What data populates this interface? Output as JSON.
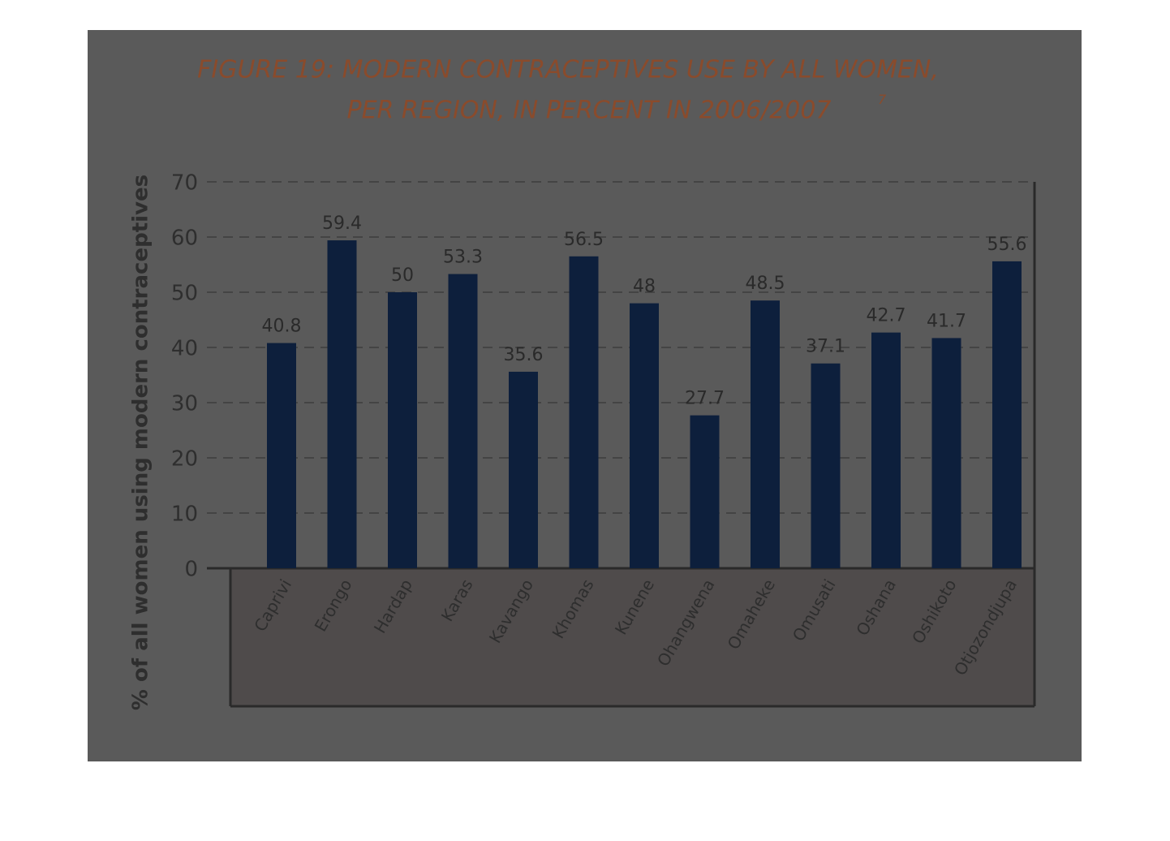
{
  "chart_data": {
    "type": "bar",
    "title_lines": [
      "FIGURE 19: MODERN CONTRACEPTIVES USE BY ALL WOMEN,",
      "PER REGION, IN PERCENT IN 2006/2007"
    ],
    "title_note": "7",
    "y_label": "% of all women using modern contraceptives",
    "categories": [
      "Caprivi",
      "Erongo",
      "Hardap",
      "Karas",
      "Kavango",
      "Khomas",
      "Kunene",
      "Ohangwena",
      "Omaheke",
      "Omusati",
      "Oshana",
      "Oshikoto",
      "Otjozondjupa"
    ],
    "values": [
      40.8,
      59.4,
      50,
      53.3,
      35.6,
      56.5,
      48,
      27.7,
      48.5,
      37.1,
      42.7,
      41.7,
      55.6
    ],
    "color": "#0d1f3c",
    "ylim": [
      0,
      70
    ],
    "yticks": [
      0,
      10,
      20,
      30,
      40,
      50,
      60,
      70
    ],
    "grid": true
  }
}
